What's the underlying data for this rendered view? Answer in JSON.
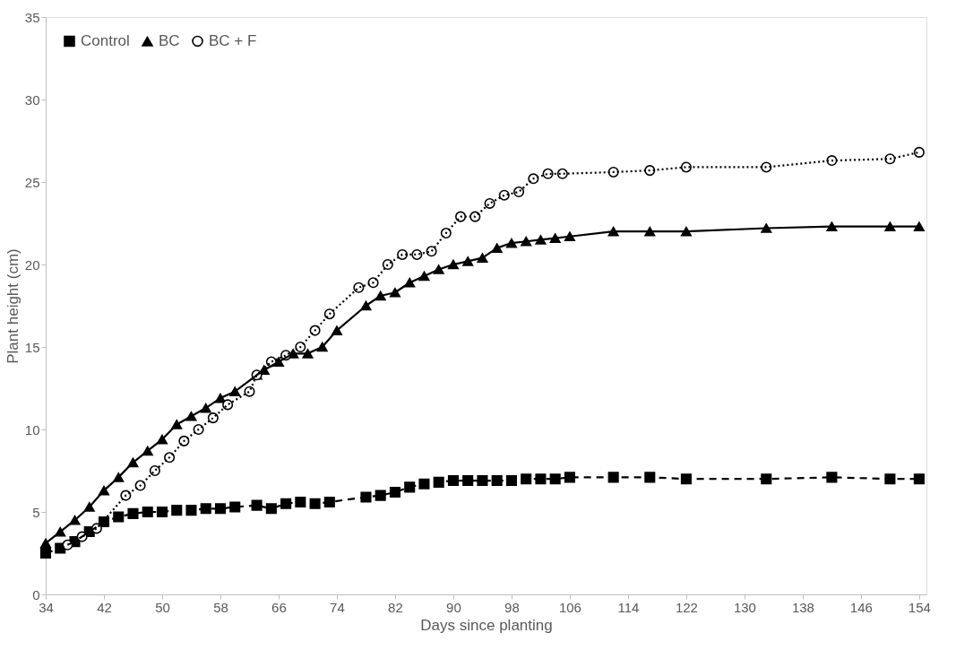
{
  "chart_data": {
    "type": "line",
    "xlabel": "Days since planting",
    "ylabel": "Plant height (cm)",
    "xlim": [
      34,
      155
    ],
    "xticks": [
      34,
      42,
      50,
      58,
      66,
      74,
      82,
      90,
      98,
      106,
      114,
      122,
      130,
      138,
      146,
      154
    ],
    "ylim": [
      0,
      35
    ],
    "yticks": [
      0,
      5,
      10,
      15,
      20,
      25,
      30,
      35
    ],
    "grid": false,
    "legend": "top left",
    "series": [
      {
        "name": "Control",
        "color": "#000000",
        "marker": "square",
        "line_style": "dashed",
        "x": [
          34,
          36,
          38,
          40,
          42,
          44,
          46,
          48,
          50,
          52,
          54,
          56,
          58,
          60,
          63,
          65,
          67,
          69,
          71,
          73,
          78,
          80,
          82,
          84,
          86,
          88,
          90,
          92,
          94,
          96,
          98,
          100,
          102,
          104,
          106,
          112,
          117,
          122,
          133,
          142,
          150,
          154
        ],
        "values": [
          2.5,
          2.8,
          3.2,
          3.8,
          4.4,
          4.7,
          4.9,
          5.0,
          5.0,
          5.1,
          5.1,
          5.2,
          5.2,
          5.3,
          5.4,
          5.2,
          5.5,
          5.6,
          5.5,
          5.6,
          5.9,
          6.0,
          6.2,
          6.5,
          6.7,
          6.8,
          6.9,
          6.9,
          6.9,
          6.9,
          6.9,
          7.0,
          7.0,
          7.0,
          7.1,
          7.1,
          7.1,
          7.0,
          7.0,
          7.1,
          7.0,
          7.0
        ]
      },
      {
        "name": "BC",
        "color": "#000000",
        "marker": "triangle",
        "line_style": "solid",
        "x": [
          34,
          36,
          38,
          40,
          42,
          44,
          46,
          48,
          50,
          52,
          54,
          56,
          58,
          60,
          63,
          64,
          66,
          68,
          70,
          72,
          74,
          78,
          80,
          82,
          84,
          86,
          88,
          90,
          92,
          94,
          96,
          98,
          100,
          102,
          104,
          106,
          112,
          117,
          122,
          133,
          142,
          150,
          154
        ],
        "values": [
          3.1,
          3.8,
          4.5,
          5.3,
          6.3,
          7.1,
          8.0,
          8.7,
          9.4,
          10.3,
          10.8,
          11.3,
          11.9,
          12.3,
          13.3,
          13.6,
          14.1,
          14.6,
          14.6,
          15.0,
          16.0,
          17.5,
          18.1,
          18.3,
          18.9,
          19.3,
          19.7,
          20.0,
          20.2,
          20.4,
          21.0,
          21.3,
          21.4,
          21.5,
          21.6,
          21.7,
          22.0,
          22.0,
          22.0,
          22.2,
          22.3,
          22.3,
          22.3
        ]
      },
      {
        "name": "BC + F",
        "color": "#000000",
        "marker": "circle",
        "line_style": "dotted",
        "x": [
          37,
          39,
          41,
          45,
          47,
          49,
          51,
          53,
          55,
          57,
          59,
          62,
          63,
          65,
          67,
          69,
          71,
          73,
          77,
          79,
          81,
          83,
          85,
          87,
          89,
          91,
          93,
          95,
          97,
          99,
          101,
          103,
          105,
          112,
          117,
          122,
          133,
          142,
          150,
          154
        ],
        "values": [
          3.0,
          3.5,
          4.0,
          6.0,
          6.6,
          7.5,
          8.3,
          9.3,
          10.0,
          10.7,
          11.5,
          12.3,
          13.3,
          14.1,
          14.5,
          15.0,
          16.0,
          17.0,
          18.6,
          18.9,
          20.0,
          20.6,
          20.6,
          20.8,
          21.9,
          22.9,
          22.9,
          23.7,
          24.2,
          24.4,
          25.2,
          25.5,
          25.5,
          25.6,
          25.7,
          25.9,
          25.9,
          26.3,
          26.4,
          26.8
        ]
      }
    ]
  }
}
